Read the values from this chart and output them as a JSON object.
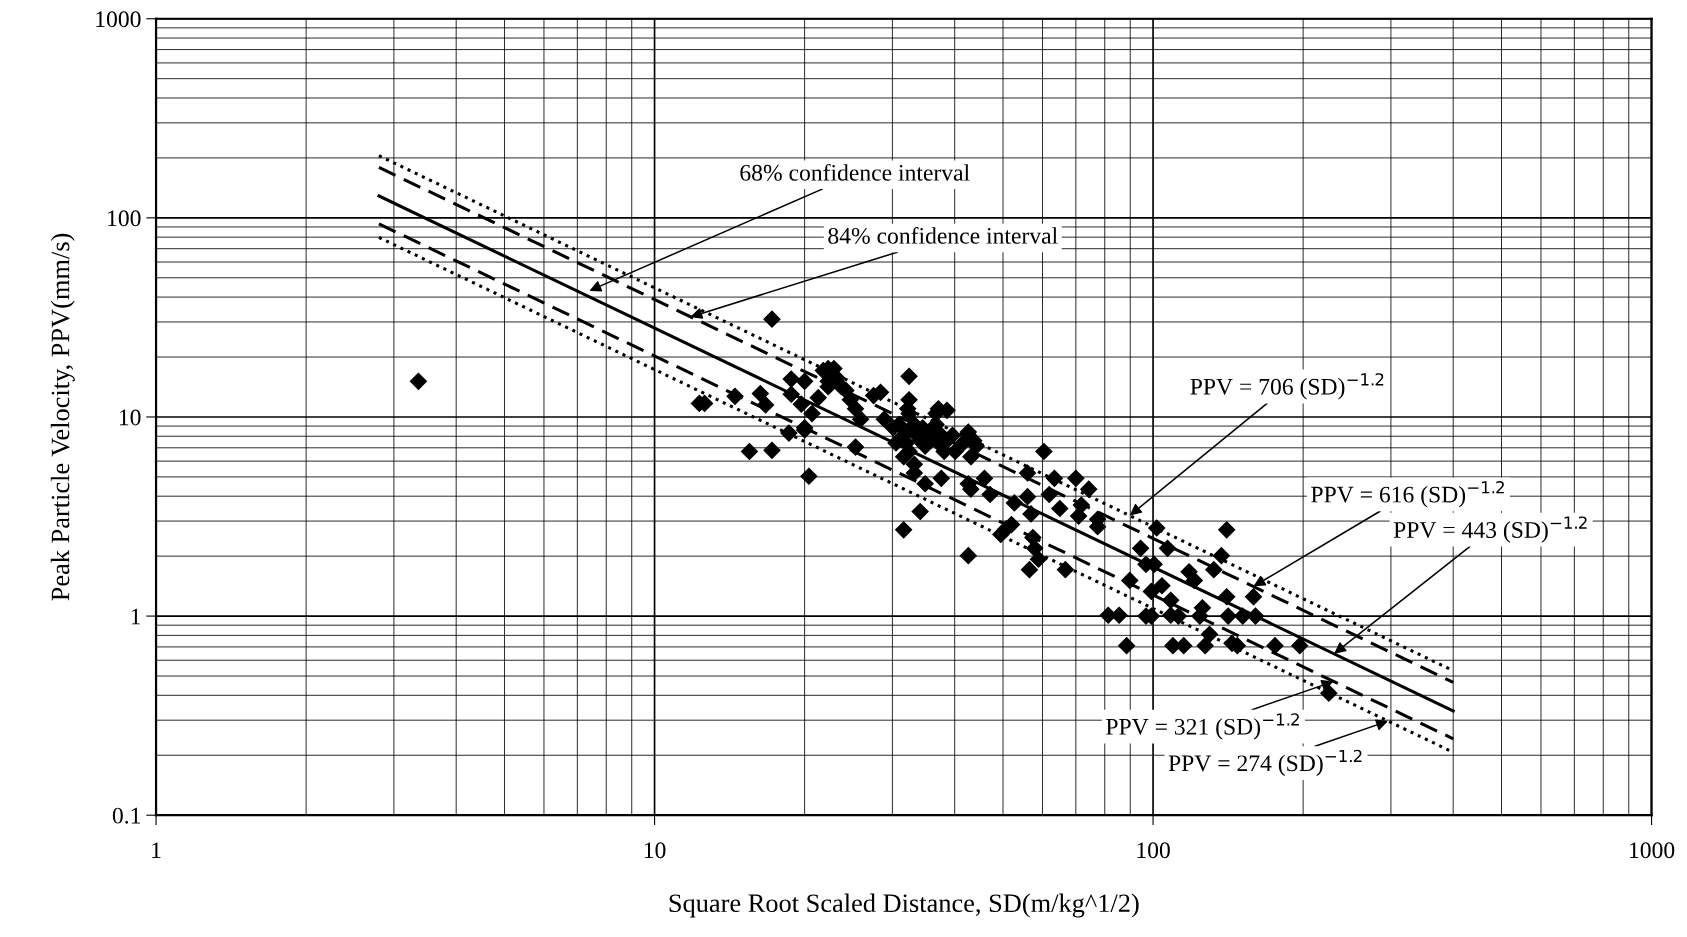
{
  "chart_data": {
    "type": "scatter",
    "xlabel": "Square Root Scaled Distance, SD(m/kg^1/2)",
    "ylabel": "Peak Particle Velocity, PPV(mm/s)",
    "log": "xy",
    "grid": true,
    "xlim": [
      1,
      1000
    ],
    "xticks": [
      1,
      10,
      100,
      1000
    ],
    "ylim": [
      0.1,
      1000
    ],
    "yticks": [
      0.1,
      1,
      10,
      100,
      1000
    ],
    "series": [
      {
        "type": "scatter",
        "color": "#000000",
        "marker": "diamond",
        "x": [
          3.36,
          12.3,
          12.6,
          14.5,
          15.5,
          17.2,
          17.2,
          16.3,
          16.7,
          18.8,
          18.8,
          18.6,
          19.7,
          20.0,
          20.4,
          20.0,
          20.0,
          20.7,
          21.3,
          21.8,
          22.3,
          22.9,
          22.3,
          22.3,
          23.2,
          23.7,
          24.2,
          24.7,
          25.3,
          25.3,
          25.9,
          27.5,
          28.4,
          28.9,
          30.1,
          30.5,
          30.9,
          31.6,
          31.6,
          32.0,
          32.4,
          32.4,
          32.4,
          33.0,
          33.2,
          33.6,
          34.1,
          34.5,
          34.9,
          35.4,
          35.8,
          36.3,
          36.7,
          37.1,
          37.6,
          38.1,
          38.6,
          39.6,
          40.1,
          37.6,
          34.1,
          34.9,
          31.6,
          33.2,
          33.2,
          32.4,
          32.2,
          36.7,
          37.1,
          38.6,
          41.6,
          42.6,
          43.7,
          43.1,
          42.6,
          43.1,
          42.6,
          44.2,
          45.9,
          47.1,
          49.5,
          50.7,
          52.0,
          52.7,
          56.0,
          56.0,
          56.9,
          56.5,
          57.4,
          57.9,
          58.9,
          60.4,
          61.9,
          63.4,
          65.0,
          66.7,
          70.0,
          71.8,
          70.9,
          74.3,
          77.4,
          77.4,
          81.3,
          85.5,
          88.5,
          89.8,
          94.4,
          96.8,
          99.2,
          96.8,
          99.2,
          100.5,
          101.7,
          104.2,
          106.9,
          108.5,
          108.5,
          109.6,
          112.4,
          115.2,
          118.1,
          121.0,
          124.1,
          125.6,
          127.2,
          129.8,
          132.4,
          137.1,
          140.5,
          140.5,
          141.5,
          144.0,
          147.6,
          151.3,
          159.0,
          160.5,
          175.6,
          196.9,
          225.2
        ],
        "values": [
          15.1,
          11.7,
          11.7,
          12.7,
          6.71,
          6.8,
          31.0,
          13.1,
          11.5,
          15.5,
          13.0,
          8.3,
          11.6,
          15.1,
          5.04,
          8.83,
          8.61,
          10.4,
          12.5,
          17.1,
          17.5,
          17.5,
          14.2,
          15.1,
          15.7,
          14.2,
          13.6,
          12.2,
          11.0,
          7.06,
          9.75,
          12.8,
          13.3,
          9.75,
          8.83,
          7.41,
          9.16,
          8.09,
          6.31,
          7.41,
          6.71,
          16.0,
          12.2,
          8.83,
          9.16,
          8.09,
          7.6,
          8.83,
          7.14,
          8.09,
          7.6,
          8.83,
          9.16,
          7.41,
          8.09,
          6.71,
          7.6,
          8.09,
          6.71,
          4.92,
          3.35,
          4.62,
          2.71,
          5.78,
          5.23,
          10.4,
          11.0,
          10.4,
          11.0,
          10.8,
          7.41,
          8.4,
          7.6,
          6.31,
          4.62,
          4.34,
          2.01,
          7.14,
          4.92,
          4.08,
          2.57,
          2.74,
          2.88,
          3.7,
          5.23,
          3.98,
          3.26,
          1.71,
          2.48,
          2.19,
          1.93,
          6.71,
          4.08,
          4.92,
          3.47,
          1.71,
          4.92,
          3.61,
          3.18,
          4.34,
          3.06,
          2.81,
          1.01,
          1.01,
          0.71,
          1.51,
          2.19,
          1.82,
          1.33,
          1.0,
          1.0,
          1.82,
          2.77,
          1.42,
          2.19,
          1.2,
          1.01,
          0.71,
          1.0,
          0.71,
          1.67,
          1.51,
          1.0,
          1.1,
          0.71,
          0.81,
          1.71,
          2.01,
          2.71,
          1.25,
          1.0,
          0.73,
          0.71,
          1.0,
          1.25,
          1.0,
          0.71,
          0.71,
          0.41
        ]
      },
      {
        "type": "line",
        "color": "#000000",
        "line_style": "dotted",
        "x": [
          2.8,
          400
        ],
        "values": [
          205.2,
          0.532
        ]
      },
      {
        "type": "line",
        "color": "#000000",
        "line_style": "dashed",
        "x": [
          2.8,
          400
        ],
        "values": [
          179.1,
          0.465
        ]
      },
      {
        "type": "line",
        "color": "#000000",
        "line_style": "solid",
        "x": [
          2.8,
          400
        ],
        "values": [
          128.8,
          0.334
        ]
      },
      {
        "type": "line",
        "color": "#000000",
        "line_style": "dashed",
        "x": [
          2.8,
          400
        ],
        "values": [
          93.3,
          0.242
        ]
      },
      {
        "type": "line",
        "color": "#000000",
        "line_style": "dotted",
        "x": [
          2.8,
          400
        ],
        "values": [
          79.7,
          0.207
        ]
      }
    ],
    "annotations": [
      {
        "text": "68% confidence interval",
        "x": 7.4,
        "y": 43
      },
      {
        "text": "84% confidence interval",
        "x": 11.8,
        "y": 31.8
      },
      {
        "text": "PPV = 706 (SD)$^{−1.2}$",
        "x": 89.8,
        "y": 3.2
      },
      {
        "text": "PPV = 616 (SD)$^{−1.2}$",
        "x": 159,
        "y": 1.41
      },
      {
        "text": "PPV = 443 (SD)$^{−1.2}$",
        "x": 230.8,
        "y": 0.647
      },
      {
        "text": "PPV = 321 (SD)$^{−1.2}$",
        "x": 230,
        "y": 0.469
      },
      {
        "text": "PPV = 274 (SD)$^{−1.2}$",
        "x": 296,
        "y": 0.297
      }
    ]
  }
}
